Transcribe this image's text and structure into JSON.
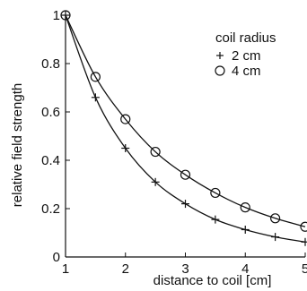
{
  "chart_data": {
    "type": "line",
    "xlabel": "distance to coil [cm]",
    "ylabel": "relative field strength",
    "xlim": [
      1,
      5
    ],
    "ylim": [
      0,
      1
    ],
    "xticks": [
      "1",
      "2",
      "3",
      "4",
      "5"
    ],
    "yticks": [
      "0",
      "0.2",
      "0.4",
      "0.6",
      "0.8",
      "1"
    ],
    "grid": false,
    "legend": {
      "title": "coil radius",
      "position": "top-right"
    },
    "series": [
      {
        "name": "2 cm",
        "marker": "plus",
        "color": "#111111",
        "x": [
          1,
          1.5,
          2,
          2.5,
          3,
          3.5,
          4,
          4.5,
          5
        ],
        "values": [
          1.0,
          0.66,
          0.45,
          0.31,
          0.22,
          0.155,
          0.113,
          0.083,
          0.062
        ]
      },
      {
        "name": "4 cm",
        "marker": "circle",
        "color": "#111111",
        "x": [
          1,
          1.5,
          2,
          2.5,
          3,
          3.5,
          4,
          4.5,
          5
        ],
        "values": [
          1.0,
          0.745,
          0.57,
          0.435,
          0.34,
          0.265,
          0.205,
          0.16,
          0.125
        ]
      }
    ]
  }
}
